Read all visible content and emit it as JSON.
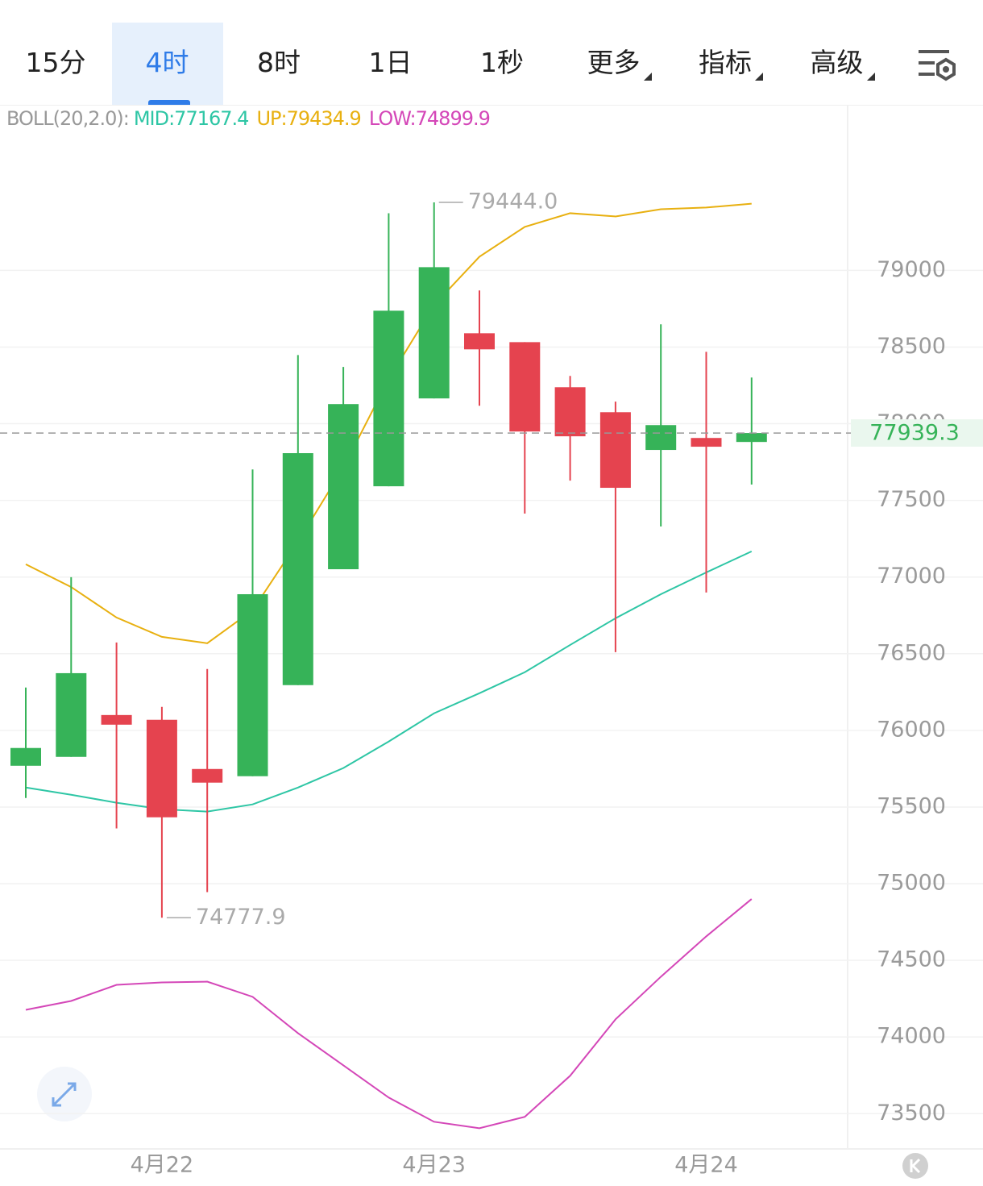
{
  "tabs": {
    "items": [
      "15分",
      "4时",
      "8时",
      "1日",
      "1秒",
      "更多",
      "指标",
      "高级"
    ],
    "active": 1,
    "menus": [
      5,
      6,
      7
    ]
  },
  "chart_data": {
    "type": "candlestick",
    "categories": [
      null,
      null,
      null,
      "4月22",
      null,
      null,
      null,
      null,
      null,
      "4月23",
      null,
      null,
      null,
      null,
      null,
      "4月24",
      null
    ],
    "open": [
      75769,
      75827,
      76100,
      76069,
      75748,
      75701,
      76295,
      77051,
      77592,
      78165,
      78590,
      78532,
      78238,
      78075,
      77829,
      77907,
      77881
    ],
    "high": [
      76279,
      76999,
      76573,
      76153,
      76400,
      77702,
      78448,
      78370,
      79373,
      79444,
      78869,
      78532,
      78312,
      78144,
      78648,
      78469,
      78301
    ],
    "low": [
      75559,
      75827,
      75360,
      74777.9,
      74945,
      75701,
      76295,
      77051,
      77592,
      78165,
      78117,
      77414,
      77629,
      76510,
      77330,
      76899,
      77603
    ],
    "close": [
      75885,
      76373,
      76037,
      75433,
      75659,
      76888,
      77808,
      78128,
      78737,
      79021,
      78485,
      77949,
      77918,
      77582,
      77991,
      77850,
      77939.3
    ],
    "up_color": "#36b358",
    "down_color": "#e5434f",
    "indicator": "BOLL(20,2.0):",
    "bands": [
      {
        "name": "MID",
        "label": "MID:77167.4",
        "color": "#2ec6a5",
        "values": [
          75627,
          75580,
          75528,
          75486,
          75470,
          75517,
          75627,
          75754,
          75927,
          76111,
          76242,
          76379,
          76557,
          76731,
          76888,
          77030,
          77167.4
        ]
      },
      {
        "name": "UP",
        "label": "UP:79434.9",
        "color": "#e8b010",
        "values": [
          77083,
          76935,
          76736,
          76610,
          76568,
          76783,
          77230,
          77713,
          78291,
          78774,
          79089,
          79284,
          79373,
          79352,
          79399,
          79410,
          79434.9
        ]
      },
      {
        "name": "LOW",
        "label": "LOW:74899.9",
        "color": "#d447b8",
        "values": [
          74177,
          74235,
          74340,
          74356,
          74361,
          74262,
          74025,
          73815,
          73605,
          73447,
          73405,
          73479,
          73747,
          74115,
          74393,
          74656,
          74899.9
        ]
      }
    ],
    "annotations": [
      {
        "index": 9,
        "value": 79444,
        "label": "79444.0"
      },
      {
        "index": 3,
        "value": 74777.9,
        "label": "74777.9"
      }
    ],
    "ylim": [
      73270,
      80080
    ],
    "yticks": [
      73500,
      74000,
      74500,
      75000,
      75500,
      76000,
      76500,
      77000,
      77500,
      78000,
      78500,
      79000
    ],
    "grid": true
  }
}
